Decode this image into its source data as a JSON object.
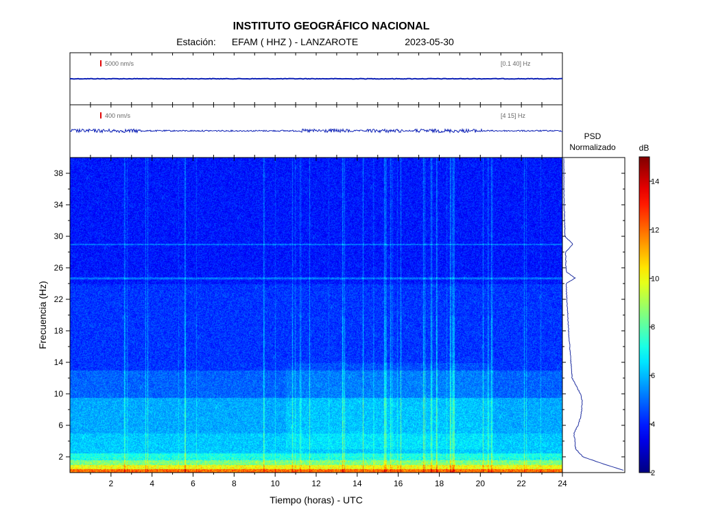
{
  "header": {
    "title": "INSTITUTO GEOGRÁFICO NACIONAL",
    "station_label": "Estación:",
    "station": "EFAM ( HHZ ) - LANZAROTE",
    "date": "2023-05-30"
  },
  "colors": {
    "waveform": "#0b1fb5",
    "scale_marker": "#e00000",
    "psd_line": "#1f2fa0"
  },
  "chart_data": [
    {
      "type": "line",
      "panel": "waveform-broadband",
      "scale_label": "5000 nm/s",
      "band_label": "[0.1 40] Hz",
      "x_range": [
        0,
        24
      ],
      "amplitude": "near-flat trace"
    },
    {
      "type": "line",
      "panel": "waveform-filtered",
      "scale_label": "400 nm/s",
      "band_label": "[4 15] Hz",
      "x_range": [
        0,
        24
      ],
      "noisy_windows_hours": [
        [
          0,
          3.5
        ],
        [
          11.2,
          13.8
        ],
        [
          14.4,
          16.2
        ],
        [
          16.8,
          20.2
        ]
      ]
    },
    {
      "type": "heatmap",
      "panel": "spectrogram",
      "xlabel": "Tiempo (horas) - UTC",
      "ylabel": "Frecuencia  (Hz)",
      "xlim": [
        0,
        24
      ],
      "ylim": [
        0,
        40
      ],
      "x_ticks": [
        2,
        4,
        6,
        8,
        10,
        12,
        14,
        16,
        18,
        20,
        22,
        24
      ],
      "y_ticks": [
        2,
        6,
        10,
        14,
        18,
        22,
        26,
        30,
        34,
        38
      ],
      "colorbar": {
        "label": "dB",
        "range": [
          2,
          15
        ],
        "ticks": [
          2,
          4,
          6,
          8,
          10,
          12,
          14
        ]
      },
      "frequency_bands_db": [
        {
          "f": [
            0,
            0.5
          ],
          "db": 12
        },
        {
          "f": [
            0.5,
            1.0
          ],
          "db": 10
        },
        {
          "f": [
            1.0,
            1.6
          ],
          "db": 8.5
        },
        {
          "f": [
            1.6,
            2.5
          ],
          "db": 7.2
        },
        {
          "f": [
            2.5,
            5.0
          ],
          "db": 6.2
        },
        {
          "f": [
            5.0,
            9.5
          ],
          "db": 5.8
        },
        {
          "f": [
            9.5,
            13.0
          ],
          "db": 4.9
        },
        {
          "f": [
            13.0,
            24.0
          ],
          "db": 4.3
        },
        {
          "f": [
            24.0,
            40.0
          ],
          "db": 3.9
        }
      ],
      "horizontal_lines_hz": [
        24.7,
        29.0
      ],
      "active_windows_hours": [
        [
          10.5,
          20.5
        ]
      ]
    },
    {
      "type": "line",
      "panel": "psd",
      "title": "PSD",
      "subtitle": "Normalizado",
      "orientation": "vertical",
      "points": [
        {
          "f": 0.3,
          "v": 1.0
        },
        {
          "f": 1,
          "v": 0.7
        },
        {
          "f": 2,
          "v": 0.32
        },
        {
          "f": 3,
          "v": 0.2
        },
        {
          "f": 5,
          "v": 0.17
        },
        {
          "f": 6,
          "v": 0.24
        },
        {
          "f": 7,
          "v": 0.28
        },
        {
          "f": 8,
          "v": 0.3
        },
        {
          "f": 9,
          "v": 0.31
        },
        {
          "f": 10,
          "v": 0.28
        },
        {
          "f": 12,
          "v": 0.14
        },
        {
          "f": 14,
          "v": 0.12
        },
        {
          "f": 16,
          "v": 0.1
        },
        {
          "f": 18,
          "v": 0.08
        },
        {
          "f": 20,
          "v": 0.07
        },
        {
          "f": 22,
          "v": 0.05
        },
        {
          "f": 24,
          "v": 0.04
        },
        {
          "f": 24.7,
          "v": 0.19
        },
        {
          "f": 25.5,
          "v": 0.04
        },
        {
          "f": 28,
          "v": 0.03
        },
        {
          "f": 29,
          "v": 0.15
        },
        {
          "f": 30,
          "v": 0.02
        },
        {
          "f": 33,
          "v": 0.01
        },
        {
          "f": 36,
          "v": 0.0
        },
        {
          "f": 40,
          "v": 0.0
        }
      ]
    }
  ]
}
